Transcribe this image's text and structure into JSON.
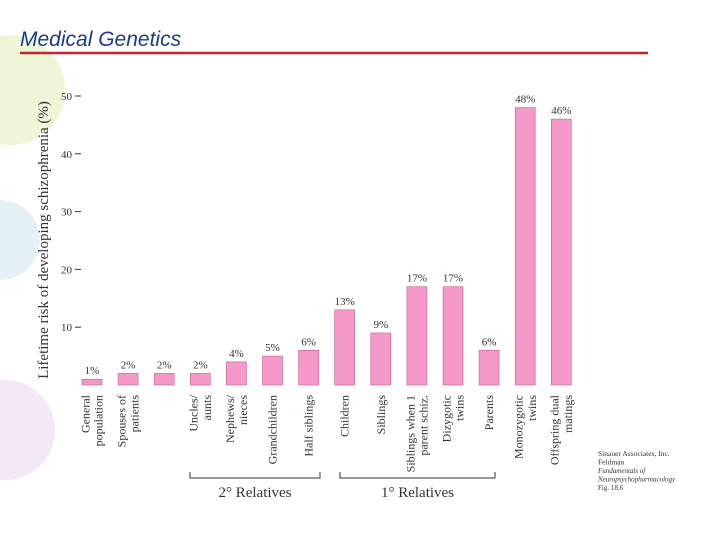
{
  "slide_title": "Medical Genetics",
  "chart_data": {
    "type": "bar",
    "ylabel": "Lifetime risk of developing schizophrenia (%)",
    "categories": [
      "General\npopulation",
      "Spouses of\npatients",
      null,
      "Uncles/\naunts",
      "Nephews/\nnieces",
      "Grandchildren",
      "Half siblings",
      "Children",
      "Siblings",
      "Siblings when 1\nparent schiz.",
      "Dizygotic\ntwins",
      "Parents",
      "Monozygotic\ntwins",
      "Offspring dual\nmatings"
    ],
    "values": [
      1,
      2,
      2,
      2,
      4,
      5,
      6,
      13,
      9,
      17,
      17,
      6,
      48,
      46
    ],
    "value_labels": [
      "1%",
      "2%",
      "2%",
      "2%",
      "4%",
      "5%",
      "6%",
      "13%",
      "9%",
      "17%",
      "17%",
      "6%",
      "48%",
      "46%"
    ],
    "color": "#f59ac8",
    "ylim": [
      0,
      50
    ],
    "yticks": [
      10,
      20,
      30,
      40,
      50
    ],
    "annotations": [
      "2° Relatives",
      "1° Relatives"
    ],
    "credit": [
      "Sinauer Associates, Inc.",
      "Feldman",
      "Fundamentals of",
      "Neuropsychopharmacology",
      "Fig. 18.6"
    ]
  }
}
